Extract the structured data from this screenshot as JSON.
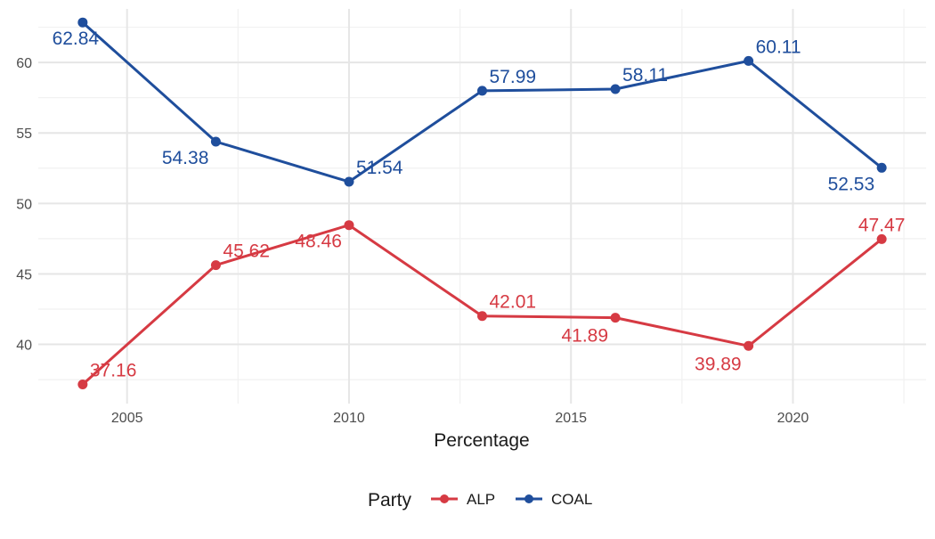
{
  "chart_data": {
    "type": "line",
    "title": "",
    "xlabel": "Percentage",
    "ylabel": "",
    "xlim": [
      2003,
      2023
    ],
    "ylim": [
      35.8,
      63.8
    ],
    "x_ticks": [
      2005,
      2010,
      2015,
      2020
    ],
    "y_ticks": [
      40,
      45,
      50,
      55,
      60
    ],
    "grid": true,
    "legend": {
      "title": "Party",
      "position": "bottom"
    },
    "x": [
      2004,
      2007,
      2010,
      2013,
      2016,
      2019,
      2022
    ],
    "series": [
      {
        "name": "ALP",
        "color": "#d63a43",
        "values": [
          37.16,
          45.62,
          48.46,
          42.01,
          41.89,
          39.89,
          47.47
        ],
        "labels": [
          "37.16",
          "45.62",
          "48.46",
          "42.01",
          "41.89",
          "39.89",
          "47.47"
        ]
      },
      {
        "name": "COAL",
        "color": "#1f4e9c",
        "values": [
          62.84,
          54.38,
          51.54,
          57.99,
          58.11,
          60.11,
          52.53
        ],
        "labels": [
          "62.84",
          "54.38",
          "51.54",
          "57.99",
          "58.11",
          "60.11",
          "52.53"
        ]
      }
    ]
  }
}
